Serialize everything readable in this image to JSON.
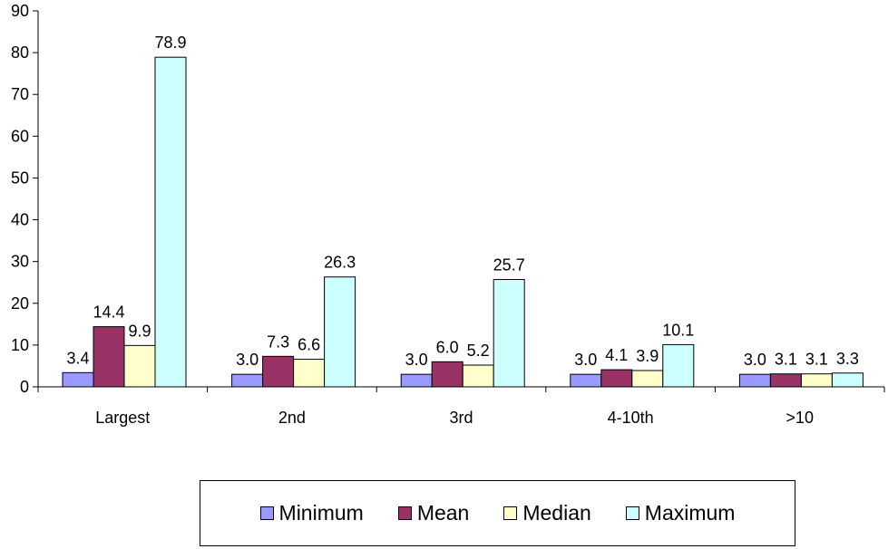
{
  "chart_data": {
    "type": "bar",
    "categories": [
      "Largest",
      "2nd",
      "3rd",
      "4-10th",
      ">10"
    ],
    "series": [
      {
        "name": "Minimum",
        "color": "#9999ff",
        "values": [
          3.4,
          3.0,
          3.0,
          3.0,
          3.0
        ],
        "labels": [
          "3.4",
          "3.0",
          "3.0",
          "3.0",
          "3.0"
        ]
      },
      {
        "name": "Mean",
        "color": "#993366",
        "values": [
          14.4,
          7.3,
          6.0,
          4.1,
          3.1
        ],
        "labels": [
          "14.4",
          "7.3",
          "6.0",
          "4.1",
          "3.1"
        ]
      },
      {
        "name": "Median",
        "color": "#ffffcc",
        "values": [
          9.9,
          6.6,
          5.2,
          3.9,
          3.1
        ],
        "labels": [
          "9.9",
          "6.6",
          "5.2",
          "3.9",
          "3.1"
        ]
      },
      {
        "name": "Maximum",
        "color": "#ccffff",
        "values": [
          78.9,
          26.3,
          25.7,
          10.1,
          3.3
        ],
        "labels": [
          "78.9",
          "26.3",
          "25.7",
          "10.1",
          "3.3"
        ]
      }
    ],
    "ylim": [
      0,
      90
    ],
    "yticks": [
      0,
      10,
      20,
      30,
      40,
      50,
      60,
      70,
      80,
      90
    ],
    "title": "",
    "xlabel": "",
    "ylabel": "",
    "grid": false,
    "legend_position": "bottom"
  }
}
